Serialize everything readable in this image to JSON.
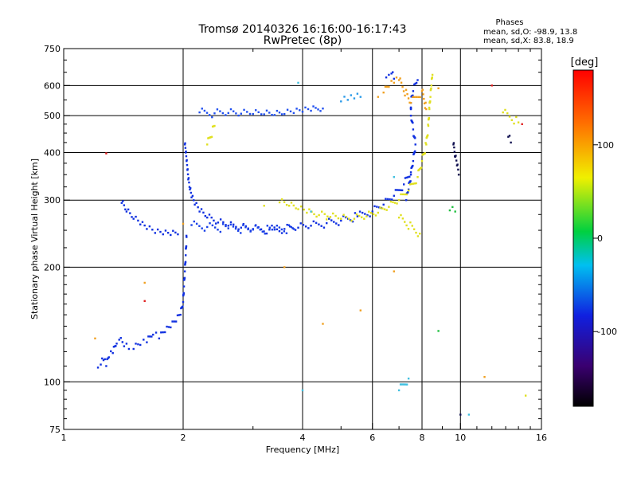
{
  "chart_data": {
    "type": "scatter",
    "title": "Tromsø 20140326 16:16:00-16:17:43",
    "subtitle": "RwPretec (8p)",
    "stats": {
      "heading": "Phases",
      "line1": "mean, sd,O: -98.9, 13.8",
      "line2": "mean, sd,X:  83.8, 18.9"
    },
    "xlabel": "Frequency [MHz]",
    "ylabel": "Stationary phase Virtual Height [km]",
    "xscale": "log",
    "yscale": "log",
    "xlim": [
      1,
      16
    ],
    "ylim": [
      75,
      750
    ],
    "xticks": [
      1,
      2,
      4,
      6,
      8,
      10,
      16
    ],
    "xtick_labels": [
      "1",
      "2",
      "4",
      "6",
      "8",
      "10",
      "16"
    ],
    "yticks": [
      75,
      100,
      200,
      300,
      400,
      500,
      600,
      750
    ],
    "ytick_labels": [
      "75",
      "100",
      "200",
      "300",
      "400",
      "500",
      "600",
      "750"
    ],
    "grid": true,
    "colorbar": {
      "label": "[deg]",
      "range": [
        -180,
        180
      ],
      "ticks": [
        100,
        0,
        -100
      ],
      "tick_labels": [
        "100",
        "0",
        "-100"
      ]
    },
    "series": [
      {
        "phase": -100,
        "color": "#1030e0",
        "points": [
          [
            1.22,
            109
          ],
          [
            1.24,
            111
          ],
          [
            1.26,
            114
          ],
          [
            1.28,
            110
          ],
          [
            1.3,
            116
          ],
          [
            1.33,
            119
          ],
          [
            1.36,
            126
          ],
          [
            1.38,
            129
          ],
          [
            1.42,
            124
          ],
          [
            1.46,
            122
          ],
          [
            1.5,
            122
          ],
          [
            1.56,
            125
          ],
          [
            1.62,
            127
          ],
          [
            1.68,
            133
          ],
          [
            1.74,
            130
          ],
          [
            1.8,
            135
          ],
          [
            1.86,
            139
          ],
          [
            1.92,
            144
          ],
          [
            1.97,
            150
          ],
          [
            2.0,
            162
          ],
          [
            2.01,
            178
          ],
          [
            2.02,
            195
          ],
          [
            2.03,
            215
          ],
          [
            2.04,
            240
          ]
        ]
      },
      {
        "phase": -100,
        "color": "#1030e0",
        "points": [
          [
            1.4,
            295
          ],
          [
            1.44,
            280
          ],
          [
            1.5,
            268
          ],
          [
            1.56,
            259
          ],
          [
            1.62,
            252
          ],
          [
            1.7,
            246
          ],
          [
            1.78,
            244
          ],
          [
            1.86,
            243
          ],
          [
            1.94,
            244
          ]
        ]
      },
      {
        "phase": -100,
        "color": "#1030e0",
        "points": [
          [
            2.02,
            420
          ],
          [
            2.03,
            400
          ],
          [
            2.04,
            380
          ],
          [
            2.05,
            360
          ],
          [
            2.06,
            340
          ],
          [
            2.08,
            320
          ],
          [
            2.1,
            305
          ],
          [
            2.14,
            292
          ],
          [
            2.2,
            280
          ],
          [
            2.3,
            270
          ],
          [
            2.45,
            262
          ],
          [
            2.6,
            257
          ],
          [
            2.8,
            254
          ],
          [
            3.0,
            252
          ],
          [
            3.3,
            251
          ],
          [
            3.6,
            252
          ],
          [
            3.9,
            254
          ],
          [
            4.2,
            257
          ],
          [
            4.6,
            261
          ],
          [
            5.0,
            265
          ],
          [
            5.5,
            272
          ],
          [
            6.0,
            280
          ],
          [
            6.4,
            292
          ],
          [
            6.8,
            308
          ],
          [
            7.2,
            330
          ],
          [
            7.5,
            355
          ]
        ]
      },
      {
        "phase": -110,
        "color": "#1840e8",
        "points": [
          [
            2.1,
            258
          ],
          [
            2.3,
            255
          ],
          [
            2.6,
            253
          ],
          [
            3.0,
            251
          ],
          [
            3.4,
            251
          ],
          [
            3.8,
            252
          ]
        ]
      },
      {
        "phase": -110,
        "color": "#2050f0",
        "points": [
          [
            2.2,
            510
          ],
          [
            2.4,
            507
          ],
          [
            2.6,
            508
          ],
          [
            2.8,
            506
          ],
          [
            3.0,
            505
          ],
          [
            3.2,
            504
          ],
          [
            3.4,
            502
          ],
          [
            3.6,
            505
          ],
          [
            3.8,
            508
          ],
          [
            4.0,
            512
          ],
          [
            4.2,
            515
          ],
          [
            4.5,
            522
          ]
        ]
      },
      {
        "phase": -80,
        "color": "#2a9ae8",
        "points": [
          [
            5.0,
            545
          ],
          [
            5.2,
            550
          ],
          [
            5.4,
            555
          ],
          [
            5.6,
            560
          ]
        ]
      },
      {
        "phase": -100,
        "color": "#1030e0",
        "points": [
          [
            7.3,
            300
          ],
          [
            7.4,
            320
          ],
          [
            7.5,
            350
          ],
          [
            7.6,
            380
          ],
          [
            7.7,
            420
          ],
          [
            7.6,
            460
          ],
          [
            7.5,
            500
          ],
          [
            7.5,
            540
          ],
          [
            7.6,
            580
          ],
          [
            7.8,
            620
          ]
        ]
      },
      {
        "phase": -100,
        "color": "#1030e0",
        "points": [
          [
            6.5,
            630
          ],
          [
            6.6,
            640
          ],
          [
            6.7,
            645
          ],
          [
            6.8,
            625
          ]
        ]
      },
      {
        "phase": 120,
        "color": "#e0e020",
        "points": [
          [
            3.5,
            296
          ],
          [
            3.7,
            290
          ],
          [
            3.9,
            284
          ],
          [
            4.1,
            278
          ],
          [
            4.4,
            274
          ],
          [
            4.7,
            271
          ],
          [
            5.0,
            268
          ],
          [
            5.4,
            268
          ],
          [
            5.8,
            272
          ],
          [
            6.2,
            278
          ],
          [
            6.6,
            288
          ],
          [
            7.0,
            300
          ],
          [
            7.4,
            318
          ],
          [
            7.8,
            345
          ],
          [
            8.0,
            380
          ],
          [
            8.2,
            420
          ],
          [
            8.3,
            470
          ],
          [
            8.35,
            520
          ],
          [
            8.4,
            560
          ],
          [
            8.45,
            600
          ],
          [
            8.5,
            640
          ]
        ]
      },
      {
        "phase": 140,
        "color": "#f0a020",
        "points": [
          [
            6.4,
            575
          ],
          [
            6.6,
            595
          ],
          [
            6.8,
            610
          ],
          [
            7.0,
            620
          ],
          [
            7.5,
            540
          ],
          [
            8.0,
            580
          ],
          [
            8.2,
            520
          ]
        ]
      },
      {
        "phase": 0,
        "color": "#20c040",
        "points": [
          [
            8.8,
            136
          ],
          [
            9.4,
            282
          ],
          [
            9.7,
            280
          ]
        ]
      },
      {
        "phase": -160,
        "color": "#101050",
        "points": [
          [
            9.6,
            420
          ],
          [
            9.7,
            390
          ],
          [
            9.8,
            370
          ],
          [
            9.9,
            350
          ],
          [
            10.0,
            82
          ],
          [
            13.2,
            440
          ],
          [
            13.4,
            425
          ]
        ]
      },
      {
        "phase": 160,
        "color": "#e02020",
        "points": [
          [
            1.28,
            398
          ],
          [
            1.6,
            163
          ],
          [
            12.0,
            600
          ],
          [
            14.3,
            475
          ]
        ]
      },
      {
        "phase": 100,
        "color": "#e0e020",
        "points": [
          [
            2.3,
            420
          ],
          [
            2.4,
            470
          ],
          [
            3.2,
            290
          ],
          [
            4.6,
            267
          ],
          [
            7.0,
            270
          ],
          [
            7.9,
            245
          ],
          [
            12.8,
            510
          ],
          [
            14.0,
            480
          ],
          [
            14.6,
            92
          ]
        ]
      },
      {
        "phase": 140,
        "color": "#f0a020",
        "points": [
          [
            1.2,
            130
          ],
          [
            1.6,
            182
          ],
          [
            2.0,
            260
          ],
          [
            3.6,
            200
          ],
          [
            4.5,
            142
          ],
          [
            5.6,
            154
          ],
          [
            6.2,
            560
          ],
          [
            6.8,
            195
          ],
          [
            8.8,
            590
          ],
          [
            11.5,
            103
          ]
        ]
      },
      {
        "phase": -60,
        "color": "#40c0e0",
        "points": [
          [
            3.9,
            610
          ],
          [
            4.0,
            95
          ],
          [
            4.2,
            280
          ],
          [
            6.8,
            345
          ],
          [
            7.0,
            95
          ],
          [
            7.4,
            102
          ],
          [
            10.5,
            82
          ]
        ]
      }
    ]
  }
}
